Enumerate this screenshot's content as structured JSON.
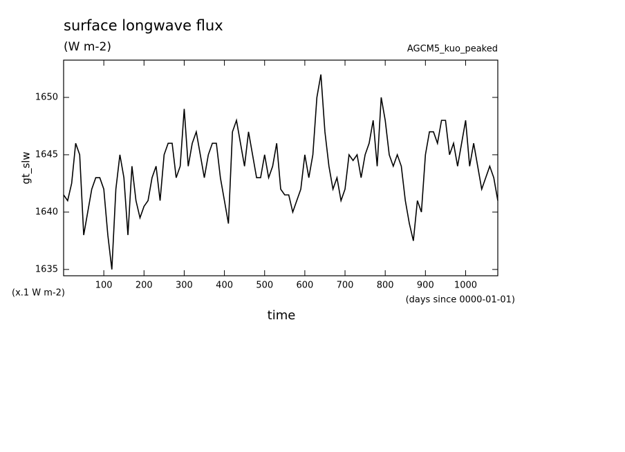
{
  "chart_data": {
    "type": "line",
    "title": "surface longwave flux",
    "subtitle": "(W m-2)",
    "annotation": "AGCM5_kuo_peaked",
    "y_label": "gt_slw",
    "y_unit_note": "(x.1 W m-2)",
    "x_unit_note": "(days since 0000-01-01)",
    "x_label": "time",
    "x": [
      0,
      10,
      20,
      30,
      40,
      50,
      60,
      70,
      80,
      90,
      100,
      110,
      120,
      130,
      140,
      150,
      160,
      170,
      180,
      190,
      200,
      210,
      220,
      230,
      240,
      250,
      260,
      270,
      280,
      290,
      300,
      310,
      320,
      330,
      340,
      350,
      360,
      370,
      380,
      390,
      400,
      410,
      420,
      430,
      440,
      450,
      460,
      470,
      480,
      490,
      500,
      510,
      520,
      530,
      540,
      550,
      560,
      570,
      580,
      590,
      600,
      610,
      620,
      630,
      640,
      650,
      660,
      670,
      680,
      690,
      700,
      710,
      720,
      730,
      740,
      750,
      760,
      770,
      780,
      790,
      800,
      810,
      820,
      830,
      840,
      850,
      860,
      870,
      880,
      890,
      900,
      910,
      920,
      930,
      940,
      950,
      960,
      970,
      980,
      990,
      1000,
      1010,
      1020,
      1030,
      1040,
      1050,
      1060,
      1070,
      1080
    ],
    "series": [
      {
        "name": "gt_slw",
        "color": "#000000",
        "values": [
          1641.5,
          1641,
          1642.5,
          1646,
          1645,
          1638,
          1640,
          1642,
          1643,
          1643,
          1642,
          1638,
          1635,
          1642,
          1645,
          1643,
          1638,
          1644,
          1641,
          1639.5,
          1640.5,
          1641,
          1643,
          1644,
          1641,
          1645,
          1646,
          1646,
          1643,
          1644,
          1649,
          1644,
          1646,
          1647,
          1645,
          1643,
          1645,
          1646,
          1646,
          1643,
          1641,
          1639,
          1647,
          1648,
          1646,
          1644,
          1647,
          1645,
          1643,
          1643,
          1645,
          1643,
          1644,
          1646,
          1642,
          1641.5,
          1641.5,
          1640,
          1641,
          1642,
          1645,
          1643,
          1645,
          1650,
          1652,
          1647,
          1644,
          1642,
          1643,
          1641,
          1642,
          1645,
          1644.5,
          1645,
          1643,
          1645,
          1646,
          1648,
          1644,
          1650,
          1648,
          1645,
          1644,
          1645,
          1644,
          1641,
          1639,
          1637.5,
          1641,
          1640,
          1645,
          1647,
          1647,
          1646,
          1648,
          1648,
          1645,
          1646,
          1644,
          1646,
          1648,
          1644,
          1646,
          1644,
          1642,
          1643,
          1644,
          1643,
          1641
        ]
      }
    ],
    "xlim": [
      0,
      1080
    ],
    "ylim": [
      1634.45,
      1653.25
    ],
    "xticks": [
      100,
      200,
      300,
      400,
      500,
      600,
      700,
      800,
      900,
      1000
    ],
    "yticks": [
      1635,
      1640,
      1645,
      1650
    ]
  }
}
